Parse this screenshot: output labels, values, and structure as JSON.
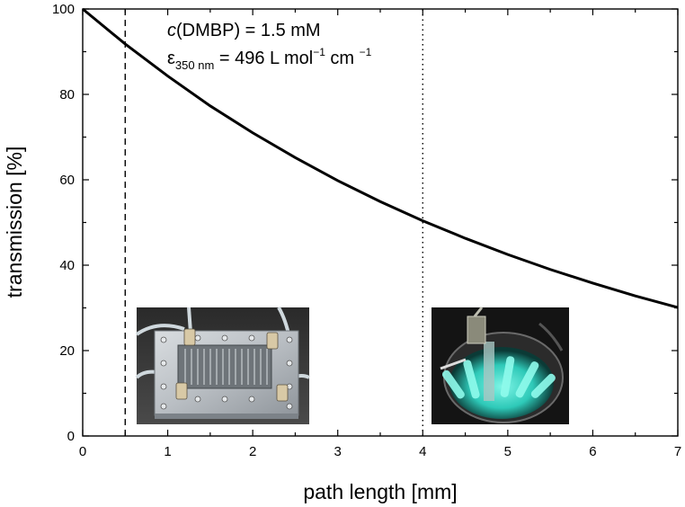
{
  "chart_data": {
    "type": "line",
    "xlabel": "path length [mm]",
    "ylabel": "transmission [%]",
    "xlim": [
      0,
      7
    ],
    "ylim": [
      0,
      100
    ],
    "x_ticks": [
      "0",
      "1",
      "2",
      "3",
      "4",
      "5",
      "6",
      "7"
    ],
    "y_ticks": [
      "0",
      "20",
      "40",
      "60",
      "80",
      "100"
    ],
    "x_minor_step": 0.5,
    "y_minor_step": 10,
    "grid": false,
    "series": [
      {
        "x": [
          0,
          0.5,
          1,
          1.5,
          2,
          2.5,
          3,
          3.5,
          4,
          4.5,
          5,
          5.5,
          6,
          6.5,
          7
        ],
        "y": [
          100,
          91.8,
          84.3,
          77.3,
          71.0,
          65.2,
          59.8,
          54.9,
          50.4,
          46.3,
          42.5,
          39.0,
          35.8,
          32.8,
          30.1
        ]
      }
    ],
    "vlines": [
      {
        "x": 0.5,
        "style": "dashed"
      },
      {
        "x": 4,
        "style": "dotted"
      }
    ],
    "annotation": {
      "line1_italic": "c",
      "line1_rest": "(DMBP) = 1.5 mM",
      "line2_epsilon": "ε",
      "line2_sub": "350 nm",
      "line2_main": " = 496 L mol",
      "line2_sup1": "−1",
      "line2_mid": " cm ",
      "line2_sup2": "−1"
    },
    "insets": [
      {
        "icon": "microreactor-photo",
        "depicts": "flat metal microreactor with tube connectors"
      },
      {
        "icon": "photoreactor-photo",
        "depicts": "immersion photoreactor with glowing UV lamps"
      }
    ]
  }
}
